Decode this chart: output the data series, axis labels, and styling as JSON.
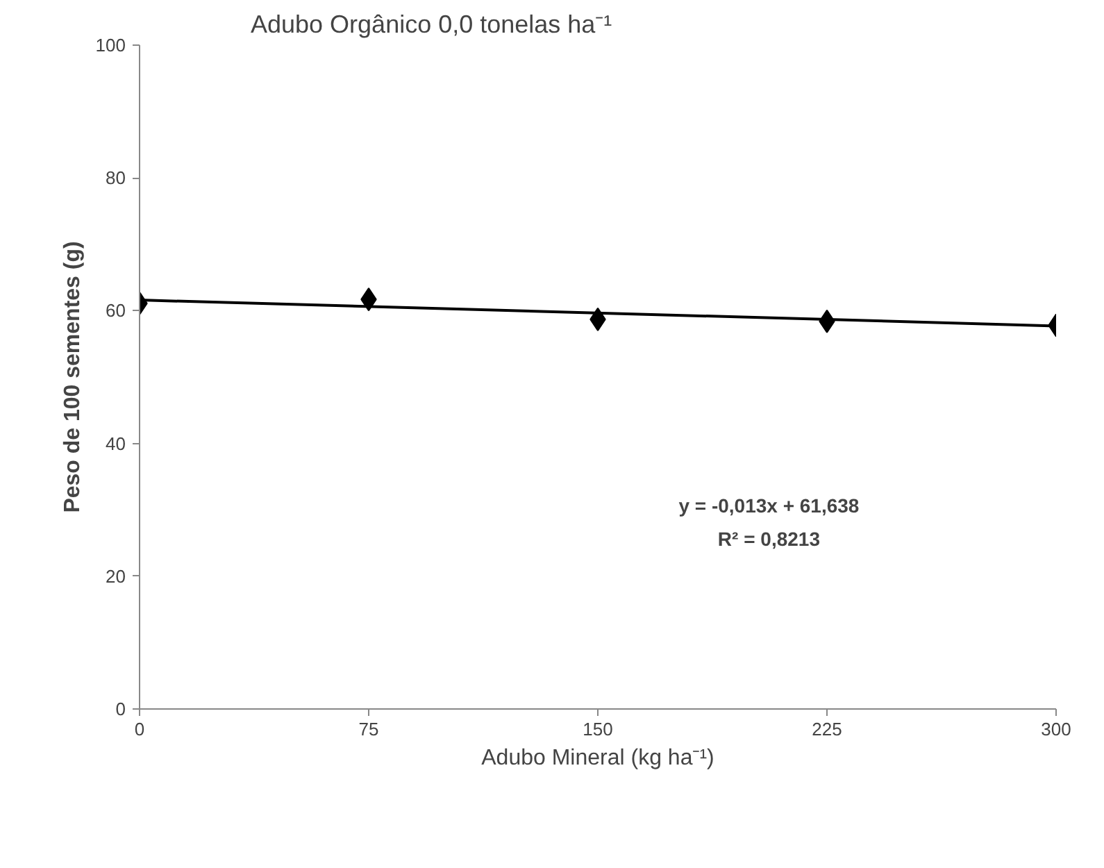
{
  "chart_data": {
    "type": "scatter",
    "title": "Adubo Orgânico 0,0 tonelas ha⁻¹",
    "xlabel": "Adubo Mineral (kg ha⁻¹)",
    "ylabel": "Peso de 100 sementes (g)",
    "x": [
      0,
      75,
      150,
      225,
      300
    ],
    "series": [
      {
        "color": "#000000",
        "marker": "diamond",
        "values": [
          61.1,
          61.7,
          58.7,
          58.4,
          57.8
        ]
      },
      {
        "type": "line",
        "color": "#000000",
        "x": [
          0,
          300
        ],
        "values": [
          61.6,
          57.7
        ]
      }
    ],
    "annotations": [
      "y = -0,013x + 61,638",
      "R² = 0,8213"
    ],
    "xlim": [
      0,
      300
    ],
    "xticks": [
      0,
      75,
      150,
      225,
      300
    ],
    "ylim": [
      0,
      100
    ],
    "yticks": [
      0,
      20,
      40,
      60,
      80,
      100
    ],
    "grid": false
  }
}
